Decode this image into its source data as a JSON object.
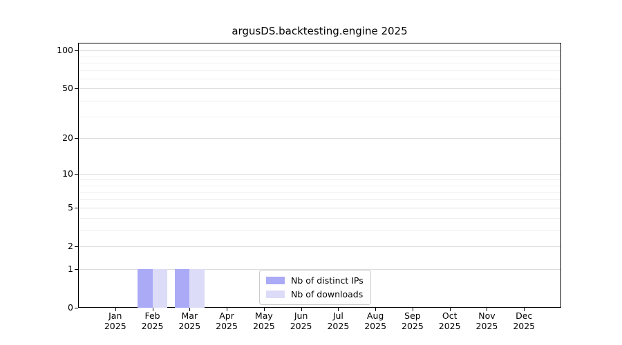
{
  "chart_data": {
    "type": "bar",
    "title": "argusDS.backtesting.engine 2025",
    "categories": [
      "Jan",
      "Feb",
      "Mar",
      "Apr",
      "May",
      "Jun",
      "Jul",
      "Aug",
      "Sep",
      "Oct",
      "Nov",
      "Dec"
    ],
    "year": "2025",
    "series": [
      {
        "name": "Nb of distinct IPs",
        "color": "#aaaaf6",
        "values": [
          0,
          1,
          1,
          0,
          0,
          0,
          0,
          0,
          0,
          0,
          0,
          0
        ]
      },
      {
        "name": "Nb of downloads",
        "color": "#dcdcf8",
        "values": [
          0,
          1,
          1,
          0,
          0,
          0,
          0,
          0,
          0,
          0,
          0,
          0
        ]
      }
    ],
    "yscale": "log1p",
    "ylim": [
      0,
      115
    ],
    "y_major_ticks": [
      0,
      1,
      2,
      5,
      10,
      20,
      50,
      100
    ],
    "y_minor_ticks": [
      3,
      4,
      6,
      7,
      8,
      9,
      30,
      40,
      60,
      70,
      80,
      90
    ],
    "grid": "horizontal",
    "legend_position": "lower center",
    "colors": {
      "major_grid": "#dcdcdc",
      "minor_grid": "#efefef",
      "spine": "#000000",
      "text": "#000000",
      "legend_border": "#cccccc",
      "background": "#ffffff"
    }
  }
}
